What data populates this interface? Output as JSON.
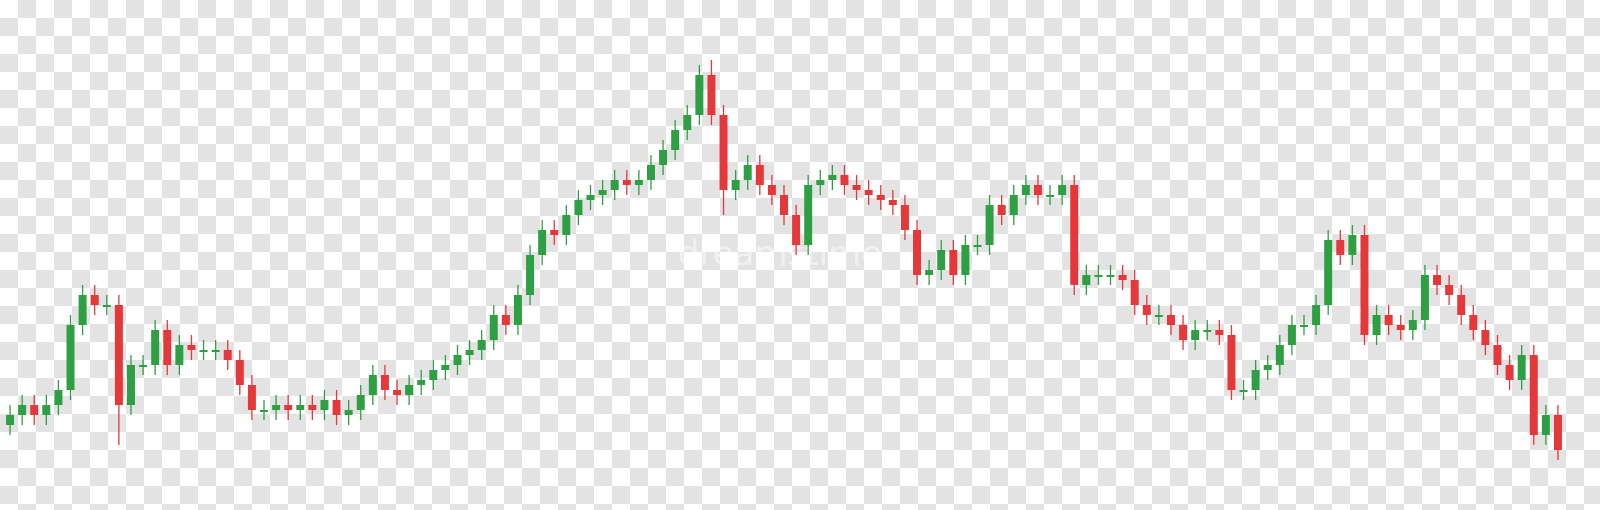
{
  "chart_data": {
    "type": "candlestick",
    "watermark": "dreamstime",
    "up_color": "#2ea043",
    "down_color": "#e5383b",
    "ylim": [
      0,
      100
    ],
    "open": [
      16,
      18,
      20,
      18,
      20,
      23,
      36,
      42,
      40,
      40,
      20,
      28,
      28,
      35,
      28,
      32,
      31,
      31,
      31,
      29,
      24,
      19,
      19,
      20,
      19,
      20,
      19,
      21,
      18,
      19,
      22,
      26,
      23,
      22,
      24,
      25,
      27,
      28,
      30,
      31,
      33,
      38,
      36,
      42,
      50,
      55,
      54,
      58,
      61,
      62,
      63,
      65,
      64,
      65,
      68,
      71,
      75,
      78,
      86,
      78,
      63,
      65,
      68,
      64,
      62,
      58,
      52,
      64,
      65,
      66,
      64,
      63,
      62,
      61,
      60,
      55,
      46,
      47,
      51,
      46,
      52,
      52,
      60,
      58,
      62,
      64,
      62,
      62,
      64,
      44,
      46,
      46,
      46,
      45,
      40,
      38,
      38,
      36,
      33,
      35,
      35,
      34,
      23,
      23,
      27,
      28,
      32,
      36,
      36,
      40,
      53,
      50,
      54,
      34,
      38,
      36,
      35,
      37,
      46,
      44,
      42,
      38,
      35,
      32,
      28,
      25,
      30,
      14,
      18
    ],
    "high": [
      20,
      22,
      22,
      22,
      25,
      38,
      44,
      44,
      42,
      42,
      30,
      30,
      37,
      37,
      34,
      34,
      33,
      33,
      33,
      31,
      26,
      21,
      22,
      22,
      22,
      22,
      23,
      23,
      21,
      24,
      28,
      28,
      25,
      26,
      27,
      29,
      30,
      32,
      33,
      35,
      40,
      40,
      44,
      52,
      57,
      57,
      60,
      63,
      64,
      65,
      67,
      67,
      67,
      70,
      73,
      77,
      80,
      88,
      89,
      80,
      67,
      70,
      70,
      66,
      64,
      60,
      66,
      67,
      68,
      68,
      66,
      65,
      64,
      63,
      62,
      57,
      49,
      53,
      53,
      54,
      54,
      62,
      62,
      64,
      66,
      66,
      64,
      66,
      66,
      48,
      48,
      48,
      48,
      47,
      42,
      40,
      40,
      38,
      37,
      37,
      37,
      36,
      25,
      29,
      30,
      34,
      38,
      38,
      42,
      55,
      55,
      56,
      56,
      40,
      40,
      38,
      39,
      48,
      48,
      46,
      44,
      40,
      37,
      34,
      30,
      32,
      32,
      20,
      20
    ],
    "low": [
      14,
      16,
      16,
      16,
      18,
      21,
      34,
      38,
      38,
      12,
      18,
      26,
      26,
      26,
      26,
      29,
      29,
      29,
      27,
      22,
      17,
      17,
      17,
      17,
      17,
      17,
      17,
      16,
      16,
      17,
      20,
      21,
      20,
      20,
      22,
      23,
      25,
      26,
      28,
      29,
      31,
      34,
      34,
      40,
      48,
      52,
      52,
      56,
      59,
      60,
      61,
      62,
      62,
      63,
      66,
      69,
      73,
      76,
      76,
      58,
      61,
      63,
      62,
      60,
      56,
      50,
      50,
      62,
      63,
      62,
      61,
      60,
      59,
      58,
      53,
      44,
      44,
      45,
      44,
      44,
      50,
      50,
      56,
      56,
      60,
      60,
      60,
      60,
      42,
      42,
      44,
      44,
      43,
      38,
      36,
      36,
      34,
      31,
      31,
      33,
      32,
      21,
      21,
      21,
      25,
      26,
      30,
      34,
      34,
      38,
      48,
      48,
      32,
      32,
      34,
      33,
      33,
      35,
      42,
      40,
      36,
      33,
      30,
      26,
      23,
      23,
      12,
      12,
      9
    ],
    "close": [
      18,
      20,
      18,
      20,
      23,
      36,
      42,
      40,
      40,
      20,
      28,
      28,
      35,
      28,
      32,
      31,
      31,
      31,
      29,
      24,
      19,
      19,
      20,
      19,
      20,
      19,
      21,
      18,
      19,
      22,
      26,
      23,
      22,
      24,
      25,
      27,
      28,
      30,
      31,
      33,
      38,
      36,
      42,
      50,
      55,
      54,
      58,
      61,
      62,
      63,
      65,
      64,
      65,
      68,
      71,
      75,
      78,
      86,
      78,
      63,
      65,
      68,
      64,
      62,
      58,
      52,
      64,
      65,
      66,
      64,
      63,
      62,
      61,
      60,
      55,
      46,
      47,
      51,
      46,
      52,
      52,
      60,
      58,
      62,
      64,
      62,
      62,
      64,
      44,
      46,
      46,
      46,
      45,
      40,
      38,
      38,
      36,
      33,
      35,
      35,
      34,
      23,
      23,
      27,
      28,
      32,
      36,
      36,
      40,
      53,
      50,
      54,
      34,
      38,
      36,
      35,
      37,
      46,
      44,
      42,
      38,
      35,
      32,
      28,
      25,
      30,
      14,
      18,
      11
    ]
  }
}
